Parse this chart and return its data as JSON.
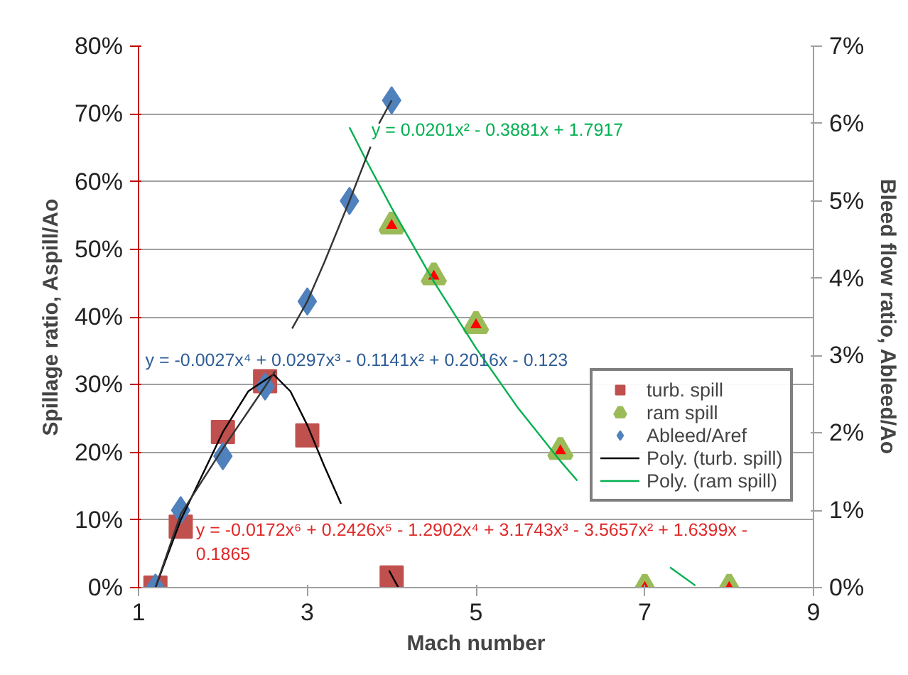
{
  "chart_data": {
    "type": "scatter",
    "xlabel": "Mach number",
    "ylabel": "Spillage ratio, Aspill/Ao",
    "y2label": "Bleed flow ratio, Ableed/Ao",
    "xlim": [
      1,
      9
    ],
    "xticks": [
      1,
      3,
      5,
      7,
      9
    ],
    "ylim": [
      0,
      80
    ],
    "yticks": [
      {
        "value": 0,
        "label": "0%"
      },
      {
        "value": 10,
        "label": "10%"
      },
      {
        "value": 20,
        "label": "20%"
      },
      {
        "value": 30,
        "label": "30%"
      },
      {
        "value": 40,
        "label": "40%"
      },
      {
        "value": 50,
        "label": "50%"
      },
      {
        "value": 60,
        "label": "60%"
      },
      {
        "value": 70,
        "label": "70%"
      },
      {
        "value": 80,
        "label": "80%"
      }
    ],
    "y2lim": [
      0,
      7
    ],
    "y2ticks": [
      {
        "value": 0,
        "label": "0%"
      },
      {
        "value": 1,
        "label": "1%"
      },
      {
        "value": 2,
        "label": "2%"
      },
      {
        "value": 3,
        "label": "3%"
      },
      {
        "value": 4,
        "label": "4%"
      },
      {
        "value": 5,
        "label": "5%"
      },
      {
        "value": 6,
        "label": "6%"
      },
      {
        "value": 7,
        "label": "7%"
      }
    ],
    "grid": "y",
    "legend": "right",
    "series": [
      {
        "name": "turb. spill",
        "marker": "square",
        "color": "#c0504d",
        "x": [
          1.2,
          1.5,
          2.0,
          2.5,
          3.0,
          4.0
        ],
        "values": [
          0,
          9,
          23,
          30.5,
          22.5,
          1.5
        ]
      },
      {
        "name": "ram spill",
        "marker": "triangle",
        "color": "#9bbb59",
        "x": [
          4.0,
          4.5,
          5.0,
          6.0,
          7.0,
          8.0
        ],
        "values": [
          53.5,
          46,
          38.8,
          20.2,
          0,
          0
        ]
      },
      {
        "name": "Ableed/Aref",
        "marker": "diamond",
        "color": "#4f81bd",
        "axis": "y2",
        "x": [
          1.2,
          1.5,
          2.0,
          2.5,
          3.0,
          3.5,
          4.0
        ],
        "values": [
          0,
          1.0,
          1.7,
          2.6,
          3.7,
          5.0,
          6.3
        ]
      },
      {
        "name": "Poly. (turb. spill)",
        "type": "line",
        "marker": "none",
        "color": "#000000",
        "x": [
          1.2,
          1.5,
          2.0,
          2.3,
          2.6,
          2.8,
          3.0,
          3.2,
          3.4,
          3.7,
          3.97,
          4.08
        ],
        "values": [
          0,
          10,
          23,
          29,
          31.5,
          29,
          24,
          18,
          12.4,
          null,
          2.5,
          0
        ]
      },
      {
        "name": "Poly. (ram spill)",
        "type": "line",
        "marker": "none",
        "color": "#00b050",
        "x": [
          3.5,
          3.7,
          4.0,
          4.5,
          5.0,
          5.5,
          6.0,
          6.2,
          6.9,
          7.3,
          7.6
        ],
        "values": [
          68.0,
          63.1,
          56.1,
          45.2,
          35.4,
          26.5,
          18.7,
          15.8,
          null,
          3.0,
          0.3
        ]
      },
      {
        "type": "line",
        "marker": "none",
        "color": "#333333",
        "axis": "y2",
        "x": [
          1.2,
          1.5,
          2.0,
          2.5,
          2.62,
          2.7,
          2.82,
          3.0,
          3.2,
          3.5,
          3.75,
          3.8,
          3.85,
          4.0
        ],
        "values": [
          0,
          0.95,
          1.8,
          2.6,
          2.8,
          null,
          3.35,
          3.7,
          4.2,
          5.0,
          5.7,
          null,
          6.0,
          6.3
        ]
      }
    ],
    "annotations": [
      "y = 0.0201x² - 0.3881x + 1.7917",
      "y = -0.0027x⁴ + 0.0297x³ - 0.1141x² + 0.2016x - 0.123",
      "y = -0.0172x⁶ + 0.2426x⁵ - 1.2902x⁴ + 3.1743x³ - 3.5657x² + 1.6399x -\n0.1865"
    ]
  }
}
